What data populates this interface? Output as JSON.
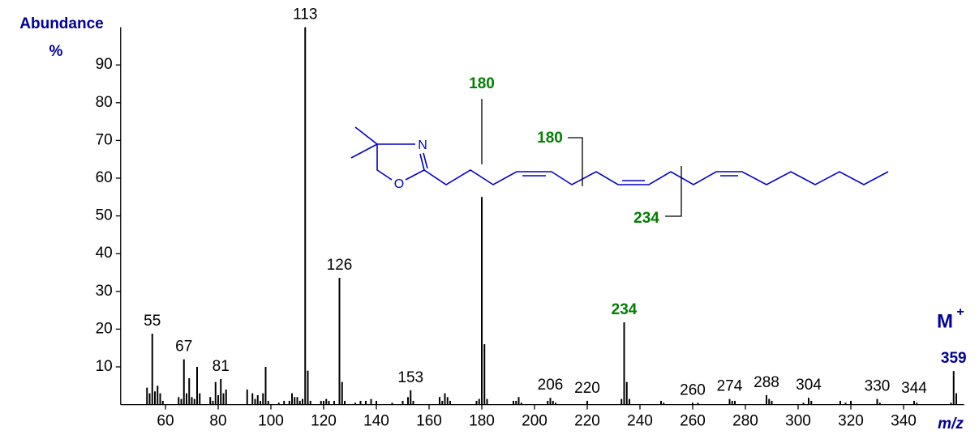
{
  "chart_data": {
    "type": "stem",
    "y_label": "Abundance",
    "y_unit": "%",
    "x_label": "m/z",
    "molecular_ion": "M",
    "molecular_ion_charge": "+",
    "x": [
      53,
      54,
      55,
      56,
      57,
      58,
      59,
      65,
      66,
      67,
      68,
      69,
      70,
      71,
      72,
      73,
      77,
      78,
      79,
      80,
      81,
      82,
      83,
      91,
      93,
      94,
      95,
      96,
      97,
      98,
      99,
      103,
      105,
      107,
      108,
      109,
      110,
      111,
      112,
      113,
      114,
      115,
      119,
      120,
      121,
      122,
      124,
      126,
      127,
      128,
      132,
      134,
      136,
      138,
      140,
      146,
      150,
      152,
      153,
      154,
      164,
      165,
      166,
      167,
      168,
      178,
      179,
      180,
      181,
      182,
      192,
      193,
      194,
      195,
      205,
      206,
      207,
      208,
      220,
      233,
      234,
      235,
      236,
      248,
      249,
      260,
      262,
      274,
      275,
      276,
      288,
      289,
      290,
      302,
      304,
      305,
      316,
      318,
      320,
      330,
      331,
      344,
      345,
      358,
      359,
      360
    ],
    "values": [
      4.5,
      3,
      18.8,
      3.5,
      5,
      3,
      1,
      2,
      1.5,
      12,
      3,
      7,
      2,
      1.5,
      10,
      3,
      2,
      1,
      6,
      2.5,
      6.8,
      3,
      4,
      4,
      3,
      1.5,
      2.5,
      1,
      3,
      10,
      1,
      0.5,
      1,
      1,
      3,
      2,
      2,
      1,
      1.5,
      100,
      9,
      1,
      1,
      1,
      1.5,
      1,
      1,
      33.6,
      6,
      1,
      0.5,
      1,
      1,
      1.5,
      1,
      0.5,
      1,
      2,
      3.8,
      1,
      2,
      1,
      3,
      2,
      1,
      1,
      1.5,
      55,
      16,
      1.5,
      1,
      1,
      2,
      0.5,
      1,
      1.8,
      1,
      0.5,
      1,
      1.5,
      21.8,
      6,
      1.5,
      1,
      0.5,
      0.5,
      0.5,
      1.5,
      1,
      1,
      2.5,
      1.5,
      1,
      0.5,
      1.8,
      1,
      1,
      0.5,
      1,
      1.5,
      0.5,
      1,
      0.5,
      0.5,
      8.9,
      3
    ],
    "color": "#000000",
    "peak_labels": [
      {
        "value": 55,
        "color": "#000000"
      },
      {
        "value": 67,
        "color": "#000000"
      },
      {
        "value": 81,
        "color": "#000000"
      },
      {
        "value": 113,
        "color": "#000000"
      },
      {
        "value": 126,
        "color": "#000000"
      },
      {
        "value": 153,
        "color": "#000000"
      },
      {
        "value": 180,
        "color": "#008000"
      },
      {
        "value": 206,
        "color": "#000000"
      },
      {
        "value": 220,
        "color": "#000000"
      },
      {
        "value": 234,
        "color": "#008000"
      },
      {
        "value": 260,
        "color": "#000000"
      },
      {
        "value": 274,
        "color": "#000000"
      },
      {
        "value": 288,
        "color": "#000000"
      },
      {
        "value": 304,
        "color": "#000000"
      },
      {
        "value": 330,
        "color": "#000000"
      },
      {
        "value": 344,
        "color": "#000000"
      },
      {
        "value": 359,
        "color": "#000099"
      }
    ],
    "xlim": [
      43,
      363
    ],
    "ylim": [
      0,
      100
    ],
    "xticks": [
      60,
      80,
      100,
      120,
      140,
      160,
      180,
      200,
      220,
      240,
      260,
      280,
      300,
      320,
      340
    ],
    "yticks": [
      10,
      20,
      30,
      40,
      50,
      60,
      70,
      80,
      90
    ],
    "structure": {
      "atoms": [
        "N",
        "O"
      ],
      "fragments": [
        180,
        234
      ]
    }
  }
}
